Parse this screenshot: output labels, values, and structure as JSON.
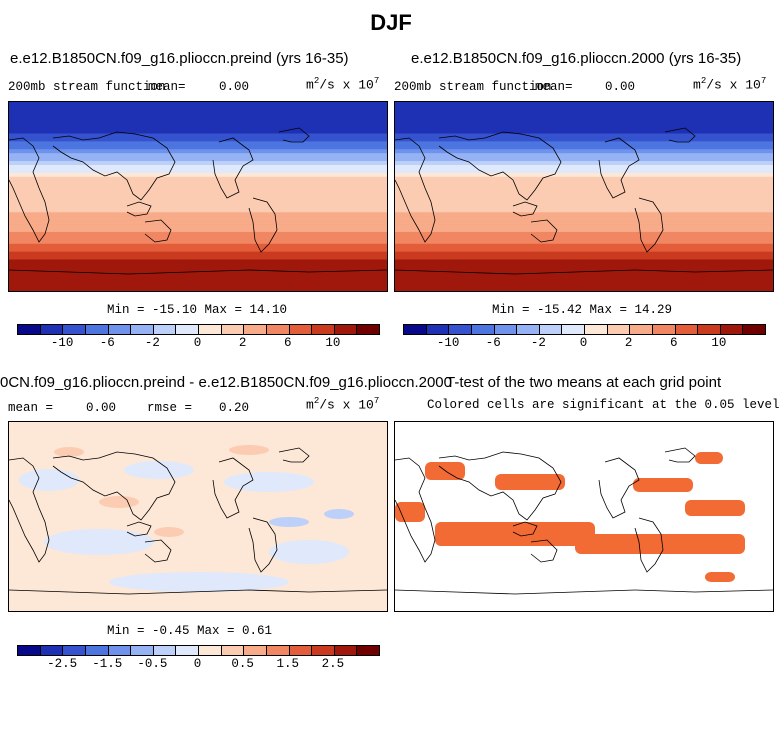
{
  "figure": {
    "title": "DJF",
    "colors": {
      "full_palette": [
        "#08088a",
        "#1e30b4",
        "#3553cf",
        "#4d75e0",
        "#6f93ec",
        "#94b2f4",
        "#bcd0f9",
        "#dfe9fb",
        "#fde7d7",
        "#fbccb2",
        "#f8ab89",
        "#f18662",
        "#e45d3a",
        "#c93a1e",
        "#a0180c",
        "#700000"
      ],
      "diff_palette": [
        "#08088a",
        "#1e30b4",
        "#3553cf",
        "#4d75e0",
        "#6f93ec",
        "#94b2f4",
        "#bcd0f9",
        "#dfe9fb",
        "#fde7d7",
        "#fbccb2",
        "#f8ab89",
        "#f18662",
        "#e45d3a",
        "#c93a1e",
        "#a0180c",
        "#700000"
      ],
      "significance": "#f26b35"
    }
  },
  "panels": {
    "preind": {
      "title": "e.e12.B1850CN.f09_g16.plioccn.preind (yrs 16-35)",
      "left_label": "200mb stream function",
      "mean_label": "mean=",
      "mean_value": "0.00",
      "units": "m",
      "units_tail": "/s x 10",
      "units_exp1": "2",
      "units_exp2": "7",
      "min_max": "Min = -15.10 Max =  14.10"
    },
    "p2000": {
      "title": "e.e12.B1850CN.f09_g16.plioccn.2000 (yrs 16-35)",
      "left_label": "200mb stream function",
      "mean_label": "mean=",
      "mean_value": "0.00",
      "units": "m",
      "units_tail": "/s x 10",
      "units_exp1": "2",
      "units_exp2": "7",
      "min_max": "Min = -15.42 Max =  14.29"
    },
    "diff": {
      "title": "0CN.f09_g16.plioccn.preind - e.e12.B1850CN.f09_g16.plioccn.2000",
      "mean_label": "mean =",
      "mean_value": "0.00",
      "rmse_label": "rmse =",
      "rmse_value": "0.20",
      "units": "m",
      "units_tail": "/s x 10",
      "units_exp1": "2",
      "units_exp2": "7",
      "min_max": "Min =  -0.45 Max =   0.61"
    },
    "ttest": {
      "title": "T-test of the two means at each grid point",
      "subtitle": "Colored cells are significant at the 0.05 level"
    }
  },
  "chart_data": [
    {
      "type": "heatmap",
      "title": "e.e12.B1850CN.f09_g16.plioccn.preind (yrs 16-35)",
      "variable": "200mb stream function",
      "units": "m^2/s x 10^7",
      "mean": 0.0,
      "min": -15.1,
      "max": 14.1,
      "colorbar_ticks": [
        "-10",
        "-6",
        "-2",
        "0",
        "2",
        "6",
        "10"
      ],
      "colorbar_levels": [
        -14,
        -12,
        -10,
        -8,
        -6,
        -4,
        -2,
        0,
        2,
        4,
        6,
        8,
        10,
        12,
        14
      ],
      "zonal_profile_lat": [
        90,
        60,
        45,
        30,
        15,
        0,
        -15,
        -30,
        -45,
        -60,
        -90
      ],
      "zonal_profile_value": [
        -14,
        -12,
        -8,
        -2,
        3,
        2,
        4,
        5,
        8,
        12,
        14
      ]
    },
    {
      "type": "heatmap",
      "title": "e.e12.B1850CN.f09_g16.plioccn.2000 (yrs 16-35)",
      "variable": "200mb stream function",
      "units": "m^2/s x 10^7",
      "mean": 0.0,
      "min": -15.42,
      "max": 14.29,
      "colorbar_ticks": [
        "-10",
        "-6",
        "-2",
        "0",
        "2",
        "6",
        "10"
      ],
      "colorbar_levels": [
        -14,
        -12,
        -10,
        -8,
        -6,
        -4,
        -2,
        0,
        2,
        4,
        6,
        8,
        10,
        12,
        14
      ],
      "zonal_profile_lat": [
        90,
        60,
        45,
        30,
        15,
        0,
        -15,
        -30,
        -45,
        -60,
        -90
      ],
      "zonal_profile_value": [
        -14,
        -12,
        -8,
        -2,
        3,
        2,
        4,
        5,
        8,
        12,
        14
      ]
    },
    {
      "type": "heatmap",
      "title": "0CN.f09_g16.plioccn.preind - e.e12.B1850CN.f09_g16.plioccn.2000",
      "units": "m^2/s x 10^7",
      "mean": 0.0,
      "rmse": 0.2,
      "min": -0.45,
      "max": 0.61,
      "colorbar_ticks": [
        "-2.5",
        "-1.5",
        "-0.5",
        "0",
        "0.5",
        "1.5",
        "2.5"
      ],
      "colorbar_levels": [
        -3.5,
        -3,
        -2.5,
        -2,
        -1.5,
        -1,
        -0.5,
        0,
        0.5,
        1,
        1.5,
        2,
        2.5,
        3,
        3.5
      ]
    },
    {
      "type": "heatmap",
      "title": "T-test of the two means at each grid point",
      "subtitle": "Colored cells are significant at the 0.05 level",
      "significance_level": 0.05
    }
  ]
}
